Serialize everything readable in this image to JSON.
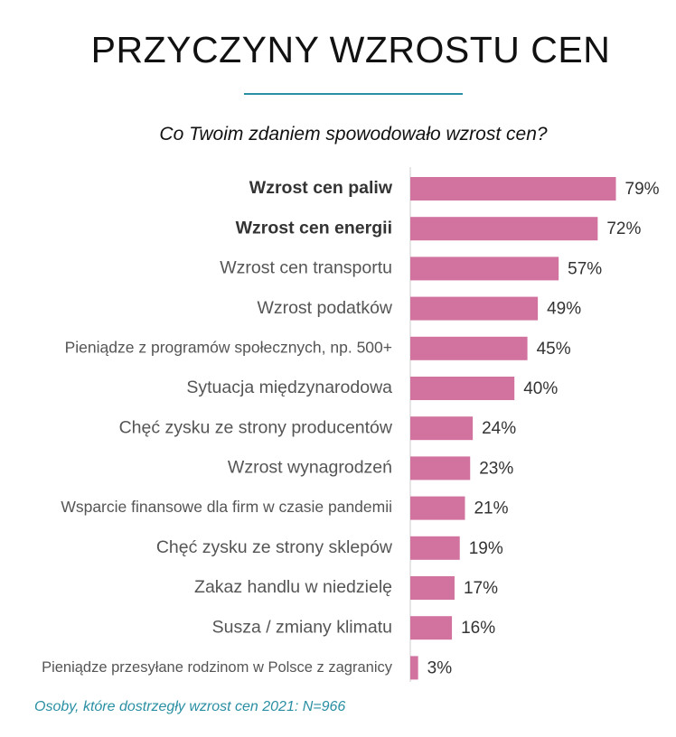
{
  "header": {
    "title": "PRZYCZYNY WZROSTU CEN",
    "subtitle": "Co Twoim zdaniem spowodowało wzrost cen?"
  },
  "footer": {
    "note": "Osoby, które dostrzegły wzrost cen 2021: N=966"
  },
  "colors": {
    "bar": "#d2739f",
    "accent": "#2a8fa3",
    "axis": "#cccccc",
    "label": "#555555",
    "label_bold": "#333333",
    "value": "#333333"
  },
  "chart_data": {
    "type": "bar",
    "orientation": "horizontal",
    "title": "",
    "xlabel": "",
    "ylabel": "",
    "xlim": [
      0,
      100
    ],
    "grid": false,
    "legend": "none",
    "value_suffix": "%",
    "bold_categories": [
      "Wzrost cen paliw",
      "Wzrost cen energii"
    ],
    "categories": [
      "Wzrost cen paliw",
      "Wzrost cen energii",
      "Wzrost cen transportu",
      "Wzrost podatków",
      "Pieniądze z programów społecznych, np. 500+",
      "Sytuacja międzynarodowa",
      "Chęć zysku ze strony producentów",
      "Wzrost wynagrodzeń",
      "Wsparcie finansowe dla firm w czasie pandemii",
      "Chęć zysku ze strony sklepów",
      "Zakaz handlu w niedzielę",
      "Susza / zmiany klimatu",
      "Pieniądze przesyłane rodzinom w Polsce z zagranicy"
    ],
    "values": [
      79,
      72,
      57,
      49,
      45,
      40,
      24,
      23,
      21,
      19,
      17,
      16,
      3
    ]
  }
}
